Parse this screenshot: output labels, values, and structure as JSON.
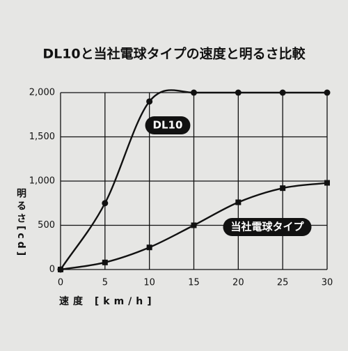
{
  "chart_data": {
    "type": "line",
    "title": "DL10と当社電球タイプの速度と明るさ比較",
    "x_label": "速度 [km/h]",
    "y_label": "明るさ[cd]",
    "x": [
      0,
      5,
      10,
      15,
      20,
      25,
      30
    ],
    "series": [
      {
        "name": "DL10",
        "color": "#111111",
        "marker": "circle",
        "values": [
          0,
          750,
          1900,
          2000,
          2000,
          2000,
          2000
        ]
      },
      {
        "name": "当社電球タイプ",
        "color": "#111111",
        "marker": "square",
        "values": [
          0,
          80,
          250,
          500,
          760,
          920,
          980
        ]
      }
    ],
    "xlim": [
      0,
      30
    ],
    "xticks": [
      0,
      5,
      10,
      15,
      20,
      25,
      30
    ],
    "ylim": [
      0,
      2000
    ],
    "yticks": [
      0,
      500,
      {
        "value": 1000,
        "label": "1,000"
      },
      {
        "value": 1500,
        "label": "1,500"
      },
      {
        "value": 2000,
        "label": "2,000"
      }
    ],
    "grid": true
  }
}
